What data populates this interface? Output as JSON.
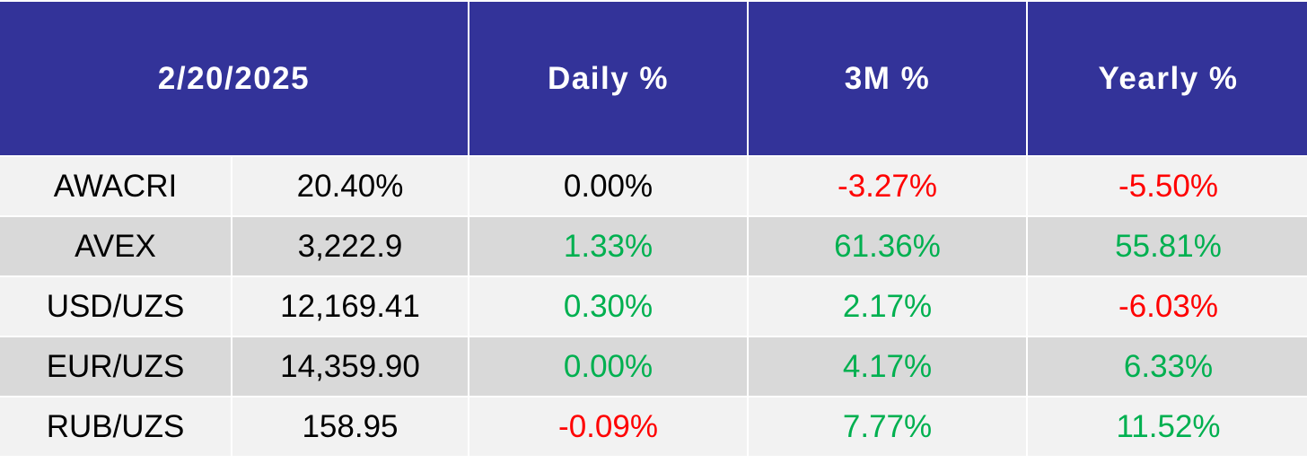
{
  "table": {
    "header": [
      "2/20/2025",
      "Daily %",
      "3M %",
      "Yearly %"
    ],
    "rows": [
      {
        "cells": [
          "AWACRI",
          "20.40%",
          "0.00%",
          "-3.27%",
          "-5.50%"
        ],
        "colors": [
          "#000000",
          "#000000",
          "#000000",
          "#ff0000",
          "#ff0000"
        ]
      },
      {
        "cells": [
          "AVEX",
          "3,222.9",
          "1.33%",
          "61.36%",
          "55.81%"
        ],
        "colors": [
          "#000000",
          "#000000",
          "#00b050",
          "#00b050",
          "#00b050"
        ]
      },
      {
        "cells": [
          "USD/UZS",
          "12,169.41",
          "0.30%",
          "2.17%",
          "-6.03%"
        ],
        "colors": [
          "#000000",
          "#000000",
          "#00b050",
          "#00b050",
          "#ff0000"
        ]
      },
      {
        "cells": [
          "EUR/UZS",
          "14,359.90",
          "0.00%",
          "4.17%",
          "6.33%"
        ],
        "colors": [
          "#000000",
          "#000000",
          "#00b050",
          "#00b050",
          "#00b050"
        ]
      },
      {
        "cells": [
          "RUB/UZS",
          "158.95",
          "-0.09%",
          "7.77%",
          "11.52%"
        ],
        "colors": [
          "#000000",
          "#000000",
          "#ff0000",
          "#00b050",
          "#00b050"
        ]
      }
    ]
  }
}
